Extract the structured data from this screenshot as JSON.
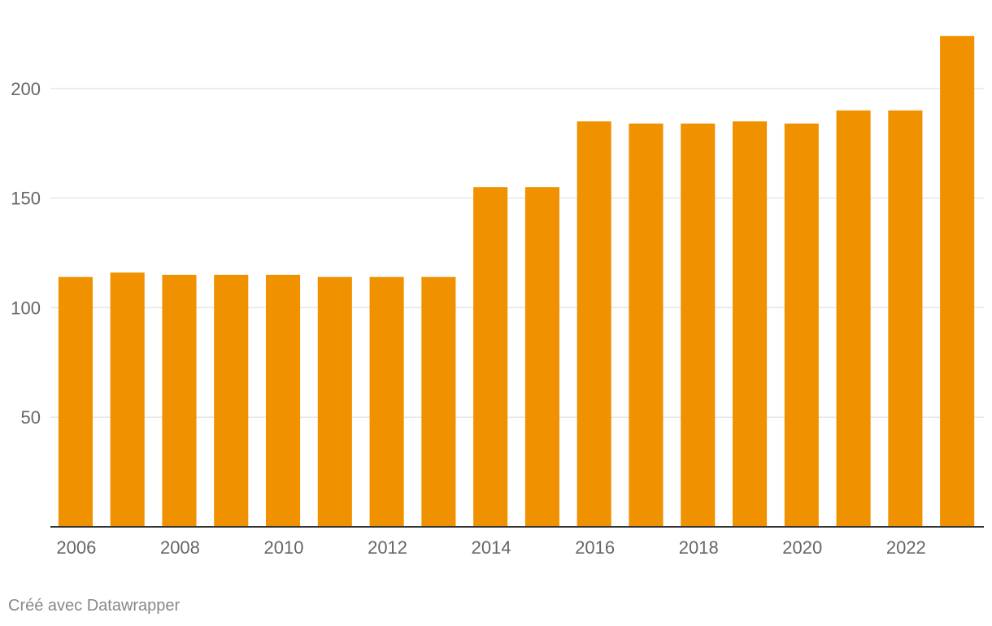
{
  "chart_data": {
    "type": "bar",
    "categories": [
      "2006",
      "2007",
      "2008",
      "2009",
      "2010",
      "2011",
      "2012",
      "2013",
      "2014",
      "2015",
      "2016",
      "2017",
      "2018",
      "2019",
      "2020",
      "2021",
      "2022",
      "2023"
    ],
    "values": [
      114,
      116,
      115,
      115,
      115,
      114,
      114,
      114,
      155,
      155,
      185,
      184,
      184,
      185,
      184,
      190,
      190,
      224
    ],
    "x_tick_labels": [
      "2006",
      "2008",
      "2010",
      "2012",
      "2014",
      "2016",
      "2018",
      "2020",
      "2022"
    ],
    "y_ticks": [
      50,
      100,
      150,
      200
    ],
    "ylim": [
      0,
      230
    ],
    "grid": true,
    "title": "",
    "xlabel": "",
    "ylabel": "",
    "colors": {
      "bar": "#F09100",
      "grid": "#e6e6e6",
      "axis": "#333333",
      "tick_text": "#666666"
    }
  },
  "credit": "Créé avec Datawrapper"
}
